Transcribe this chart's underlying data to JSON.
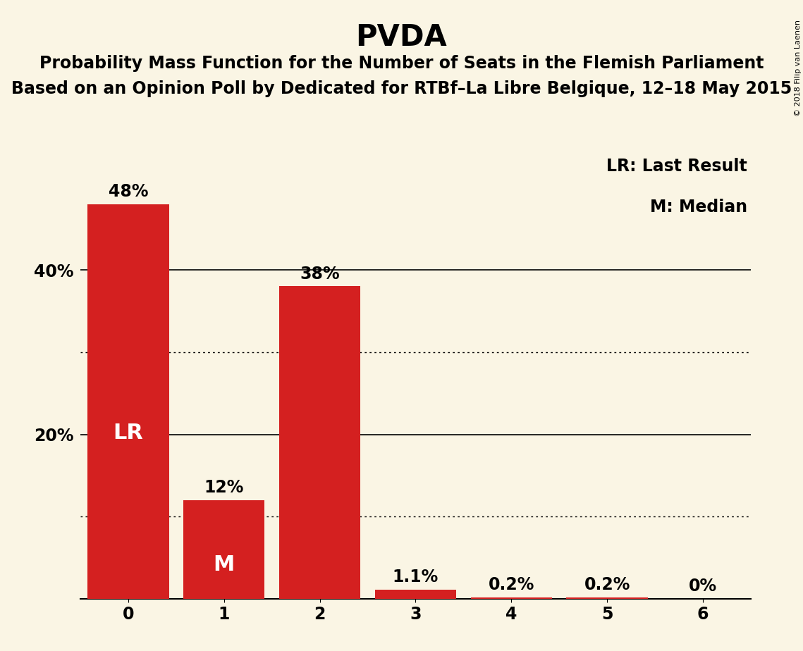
{
  "title": "PVDA",
  "subtitle1": "Probability Mass Function for the Number of Seats in the Flemish Parliament",
  "subtitle2": "Based on an Opinion Poll by Dedicated for RTBf–La Libre Belgique, 12–18 May 2015",
  "categories": [
    0,
    1,
    2,
    3,
    4,
    5,
    6
  ],
  "values": [
    48.0,
    12.0,
    38.0,
    1.1,
    0.2,
    0.2,
    0.0
  ],
  "labels": [
    "48%",
    "12%",
    "38%",
    "1.1%",
    "0.2%",
    "0.2%",
    "0%"
  ],
  "bar_color": "#d42020",
  "background_color": "#faf5e4",
  "lr_bar": 0,
  "median_bar": 1,
  "lr_label": "LR",
  "median_label": "M",
  "legend_lr": "LR: Last Result",
  "legend_m": "M: Median",
  "watermark": "© 2018 Filip van Laenen",
  "solid_gridlines": [
    20,
    40
  ],
  "dotted_gridlines": [
    10,
    30
  ],
  "ylim": [
    0,
    55
  ],
  "title_fontsize": 30,
  "subtitle_fontsize": 17,
  "bar_label_fontsize": 17,
  "inbar_fontsize": 22,
  "legend_fontsize": 17,
  "tick_fontsize": 17,
  "watermark_fontsize": 8
}
